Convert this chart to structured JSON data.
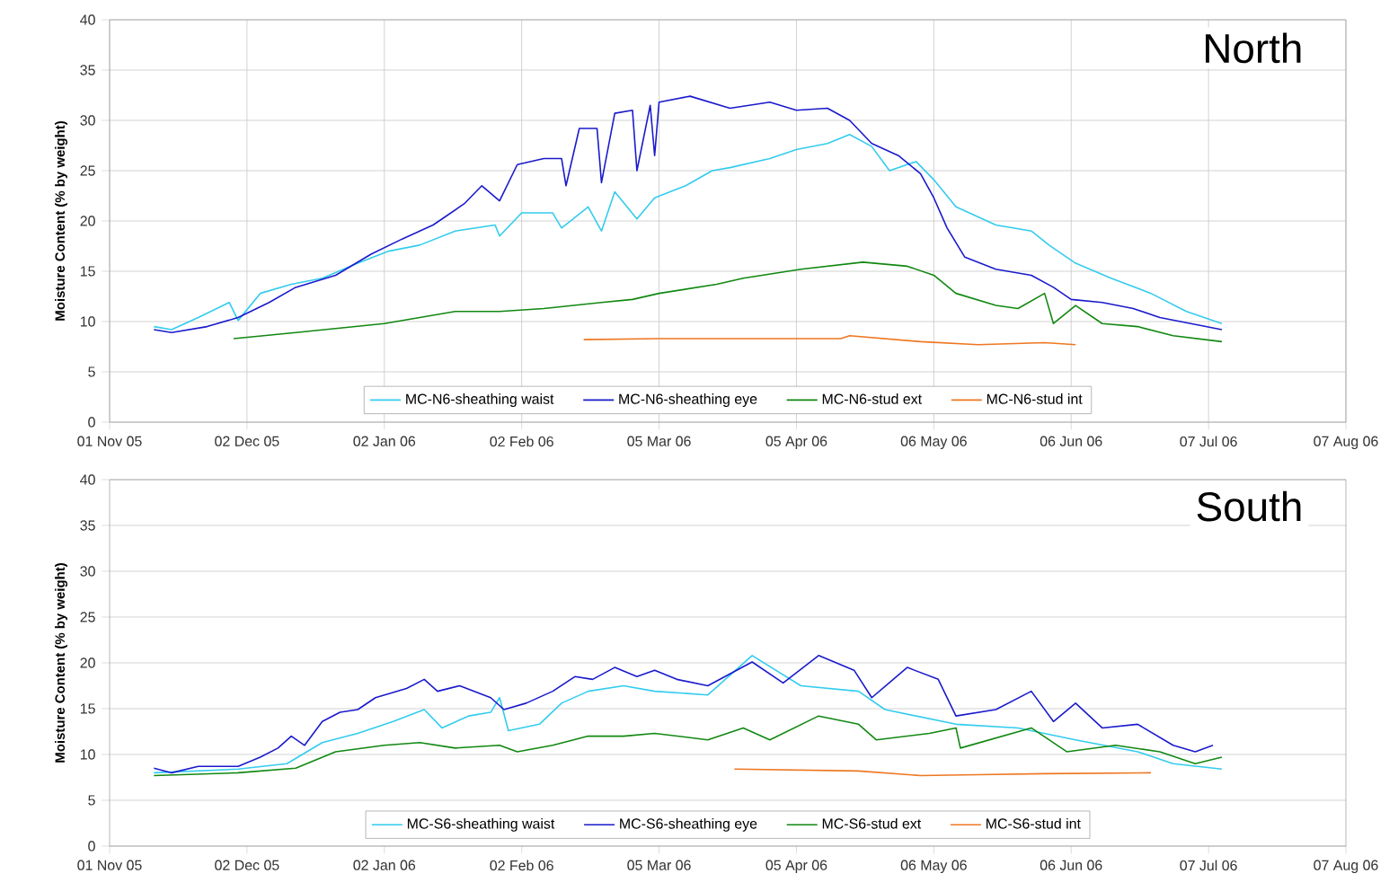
{
  "chart_data": [
    {
      "type": "line",
      "title": "North",
      "ylabel": "Moisture Content (% by weight)",
      "xlim": [
        "2005-11-01",
        "2006-08-07"
      ],
      "ylim": [
        0,
        40
      ],
      "yticks": [
        0,
        5,
        10,
        15,
        20,
        25,
        30,
        35,
        40
      ],
      "grid": true,
      "legend": "bottom",
      "xticks": [
        {
          "value": "2005-11-01",
          "label": "01 Nov 05"
        },
        {
          "value": "2005-12-02",
          "label": "02 Dec 05"
        },
        {
          "value": "2006-01-02",
          "label": "02 Jan 06"
        },
        {
          "value": "2006-02-02",
          "label": "02 Feb 06"
        },
        {
          "value": "2006-03-05",
          "label": "05 Mar 06"
        },
        {
          "value": "2006-04-05",
          "label": "05 Apr 06"
        },
        {
          "value": "2006-05-06",
          "label": "06 May 06"
        },
        {
          "value": "2006-06-06",
          "label": "06 Jun 06"
        },
        {
          "value": "2006-07-07",
          "label": "07 Jul 06"
        },
        {
          "value": "2006-08-07",
          "label": "07 Aug 06"
        }
      ],
      "series": [
        {
          "name": "MC-N6-sheathing waist",
          "color": "#33ccee",
          "x": [
            "2005-11-11",
            "2005-11-15",
            "2005-11-21",
            "2005-11-28",
            "2005-11-30",
            "2005-12-05",
            "2005-12-12",
            "2005-12-19",
            "2005-12-27",
            "2006-01-03",
            "2006-01-10",
            "2006-01-18",
            "2006-01-27",
            "2006-01-28",
            "2006-02-02",
            "2006-02-09",
            "2006-02-11",
            "2006-02-17",
            "2006-02-20",
            "2006-02-23",
            "2006-02-28",
            "2006-03-04",
            "2006-03-11",
            "2006-03-17",
            "2006-03-21",
            "2006-03-30",
            "2006-04-05",
            "2006-04-12",
            "2006-04-17",
            "2006-04-22",
            "2006-04-26",
            "2006-05-02",
            "2006-05-06",
            "2006-05-11",
            "2006-05-20",
            "2006-05-28",
            "2006-06-01",
            "2006-06-07",
            "2006-06-15",
            "2006-06-24",
            "2006-07-02",
            "2006-07-10"
          ],
          "values": [
            9.5,
            9.2,
            10.4,
            11.9,
            10.1,
            12.8,
            13.7,
            14.3,
            15.8,
            17,
            17.6,
            19,
            19.6,
            18.5,
            20.8,
            20.8,
            19.3,
            21.4,
            19,
            22.9,
            20.2,
            22.3,
            23.5,
            25,
            25.3,
            26.2,
            27.1,
            27.7,
            28.6,
            27.4,
            25,
            25.9,
            24.1,
            21.4,
            19.6,
            19,
            17.6,
            15.8,
            14.3,
            12.8,
            11,
            9.8
          ]
        },
        {
          "name": "MC-N6-sheathing eye",
          "color": "#1a1acc",
          "x": [
            "2005-11-11",
            "2005-11-15",
            "2005-11-23",
            "2005-11-30",
            "2005-12-07",
            "2005-12-13",
            "2005-12-22",
            "2005-12-30",
            "2006-01-06",
            "2006-01-13",
            "2006-01-20",
            "2006-01-24",
            "2006-01-28",
            "2006-02-01",
            "2006-02-07",
            "2006-02-11",
            "2006-02-12",
            "2006-02-15",
            "2006-02-19",
            "2006-02-20",
            "2006-02-23",
            "2006-02-27",
            "2006-02-28",
            "2006-03-03",
            "2006-03-04",
            "2006-03-05",
            "2006-03-12",
            "2006-03-21",
            "2006-03-30",
            "2006-04-05",
            "2006-04-12",
            "2006-04-17",
            "2006-04-22",
            "2006-04-28",
            "2006-05-03",
            "2006-05-06",
            "2006-05-09",
            "2006-05-13",
            "2006-05-20",
            "2006-05-28",
            "2006-06-02",
            "2006-06-06",
            "2006-06-13",
            "2006-06-20",
            "2006-06-26",
            "2006-07-03",
            "2006-07-10"
          ],
          "values": [
            9.2,
            8.9,
            9.5,
            10.4,
            11.9,
            13.4,
            14.6,
            16.7,
            18.2,
            19.6,
            21.7,
            23.5,
            22,
            25.6,
            26.2,
            26.2,
            23.5,
            29.2,
            29.2,
            23.8,
            30.7,
            31,
            25,
            31.5,
            26.5,
            31.8,
            32.4,
            31.2,
            31.8,
            31,
            31.2,
            30,
            27.7,
            26.5,
            24.7,
            22.3,
            19.3,
            16.4,
            15.2,
            14.6,
            13.4,
            12.2,
            11.9,
            11.3,
            10.4,
            9.8,
            9.2
          ]
        },
        {
          "name": "MC-N6-stud ext",
          "color": "#118811",
          "x": [
            "2005-11-29",
            "2005-12-13",
            "2006-01-02",
            "2006-01-18",
            "2006-01-28",
            "2006-02-07",
            "2006-02-20",
            "2006-02-27",
            "2006-03-05",
            "2006-03-18",
            "2006-03-24",
            "2006-04-06",
            "2006-04-20",
            "2006-04-30",
            "2006-05-06",
            "2006-05-11",
            "2006-05-20",
            "2006-05-25",
            "2006-05-31",
            "2006-06-02",
            "2006-06-07",
            "2006-06-13",
            "2006-06-21",
            "2006-06-29",
            "2006-07-10"
          ],
          "values": [
            8.3,
            8.9,
            9.8,
            11,
            11,
            11.3,
            11.9,
            12.2,
            12.8,
            13.7,
            14.3,
            15.2,
            15.9,
            15.5,
            14.6,
            12.8,
            11.6,
            11.3,
            12.8,
            9.8,
            11.6,
            9.8,
            9.5,
            8.6,
            8
          ]
        },
        {
          "name": "MC-N6-stud int",
          "color": "#ee7722",
          "x": [
            "2006-02-16",
            "2006-03-05",
            "2006-03-30",
            "2006-04-15",
            "2006-04-17",
            "2006-05-03",
            "2006-05-16",
            "2006-05-31",
            "2006-06-07"
          ],
          "values": [
            8.2,
            8.3,
            8.3,
            8.3,
            8.6,
            8,
            7.7,
            7.9,
            7.7
          ]
        }
      ]
    },
    {
      "type": "line",
      "title": "South",
      "ylabel": "Moisture Content (% by weight)",
      "xlim": [
        "2005-11-01",
        "2006-08-07"
      ],
      "ylim": [
        0,
        40
      ],
      "yticks": [
        0,
        5,
        10,
        15,
        20,
        25,
        30,
        35,
        40
      ],
      "grid": "y",
      "legend": "bottom",
      "xticks": [
        {
          "value": "2005-11-01",
          "label": "01 Nov 05"
        },
        {
          "value": "2005-12-02",
          "label": "02 Dec 05"
        },
        {
          "value": "2006-01-02",
          "label": "02 Jan 06"
        },
        {
          "value": "2006-02-02",
          "label": "02 Feb 06"
        },
        {
          "value": "2006-03-05",
          "label": "05 Mar 06"
        },
        {
          "value": "2006-04-05",
          "label": "05 Apr 06"
        },
        {
          "value": "2006-05-06",
          "label": "06 May 06"
        },
        {
          "value": "2006-06-06",
          "label": "06 Jun 06"
        },
        {
          "value": "2006-07-07",
          "label": "07 Jul 06"
        },
        {
          "value": "2006-08-07",
          "label": "07 Aug 06"
        }
      ],
      "series": [
        {
          "name": "MC-S6-sheathing waist",
          "color": "#33ccee",
          "x": [
            "2005-11-11",
            "2005-11-30",
            "2005-12-11",
            "2005-12-19",
            "2005-12-27",
            "2006-01-04",
            "2006-01-11",
            "2006-01-15",
            "2006-01-21",
            "2006-01-26",
            "2006-01-28",
            "2006-01-30",
            "2006-02-06",
            "2006-02-11",
            "2006-02-17",
            "2006-02-25",
            "2006-03-04",
            "2006-03-16",
            "2006-03-26",
            "2006-04-06",
            "2006-04-19",
            "2006-04-25",
            "2006-05-11",
            "2006-05-25",
            "2006-06-07",
            "2006-06-21",
            "2006-06-29",
            "2006-07-10"
          ],
          "values": [
            8,
            8.4,
            9,
            11.3,
            12.3,
            13.6,
            14.9,
            12.9,
            14.2,
            14.6,
            16.2,
            12.6,
            13.3,
            15.6,
            16.9,
            17.5,
            16.9,
            16.5,
            20.8,
            17.5,
            16.9,
            14.9,
            13.3,
            12.9,
            11.6,
            10.3,
            9,
            8.4
          ]
        },
        {
          "name": "MC-S6-sheathing eye",
          "color": "#1a1acc",
          "x": [
            "2005-11-11",
            "2005-11-15",
            "2005-11-21",
            "2005-11-30",
            "2005-12-05",
            "2005-12-09",
            "2005-12-12",
            "2005-12-15",
            "2005-12-19",
            "2005-12-23",
            "2005-12-27",
            "2005-12-31",
            "2006-01-07",
            "2006-01-11",
            "2006-01-14",
            "2006-01-19",
            "2006-01-26",
            "2006-01-29",
            "2006-02-03",
            "2006-02-09",
            "2006-02-14",
            "2006-02-18",
            "2006-02-23",
            "2006-02-28",
            "2006-03-04",
            "2006-03-09",
            "2006-03-16",
            "2006-03-21",
            "2006-03-26",
            "2006-04-02",
            "2006-04-10",
            "2006-04-18",
            "2006-04-22",
            "2006-04-30",
            "2006-05-07",
            "2006-05-11",
            "2006-05-20",
            "2006-05-28",
            "2006-06-02",
            "2006-06-07",
            "2006-06-13",
            "2006-06-21",
            "2006-06-29",
            "2006-07-04",
            "2006-07-08"
          ],
          "values": [
            8.5,
            8,
            8.7,
            8.7,
            9.7,
            10.7,
            12,
            11,
            13.6,
            14.6,
            14.9,
            16.2,
            17.2,
            18.2,
            16.9,
            17.5,
            16.2,
            14.9,
            15.6,
            16.9,
            18.5,
            18.2,
            19.5,
            18.5,
            19.2,
            18.2,
            17.5,
            18.8,
            20.1,
            17.8,
            20.8,
            19.2,
            16.2,
            19.5,
            18.2,
            14.2,
            14.9,
            16.9,
            13.6,
            15.6,
            12.9,
            13.3,
            11,
            10.3,
            11
          ]
        },
        {
          "name": "MC-S6-stud ext",
          "color": "#118811",
          "x": [
            "2005-11-11",
            "2005-11-30",
            "2005-12-13",
            "2005-12-22",
            "2006-01-02",
            "2006-01-10",
            "2006-01-18",
            "2006-01-28",
            "2006-02-01",
            "2006-02-09",
            "2006-02-17",
            "2006-02-25",
            "2006-03-04",
            "2006-03-16",
            "2006-03-24",
            "2006-03-30",
            "2006-04-10",
            "2006-04-19",
            "2006-04-23",
            "2006-05-05",
            "2006-05-11",
            "2006-05-12",
            "2006-05-28",
            "2006-06-05",
            "2006-06-16",
            "2006-06-26",
            "2006-07-04",
            "2006-07-10"
          ],
          "values": [
            7.7,
            8,
            8.5,
            10.3,
            11,
            11.3,
            10.7,
            11,
            10.3,
            11,
            12,
            12,
            12.3,
            11.6,
            12.9,
            11.6,
            14.2,
            13.3,
            11.6,
            12.3,
            12.9,
            10.7,
            12.9,
            10.3,
            11,
            10.3,
            9,
            9.7
          ]
        },
        {
          "name": "MC-S6-stud int",
          "color": "#ee7722",
          "x": [
            "2006-03-22",
            "2006-04-19",
            "2006-05-03",
            "2006-05-16",
            "2006-05-31",
            "2006-06-24"
          ],
          "values": [
            8.4,
            8.2,
            7.7,
            7.8,
            7.9,
            8
          ]
        }
      ]
    }
  ]
}
